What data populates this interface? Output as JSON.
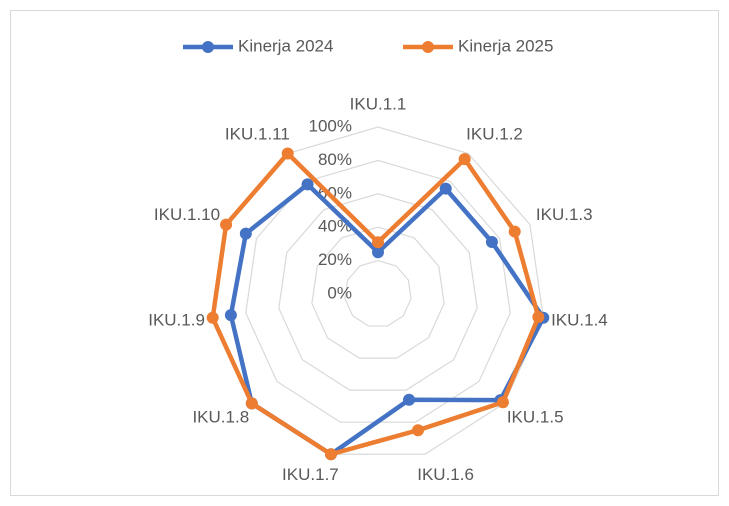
{
  "chart_data": {
    "type": "radar",
    "categories": [
      "IKU.1.1",
      "IKU.1.2",
      "IKU.1.3",
      "IKU.1.4",
      "IKU.1.5",
      "IKU.1.6",
      "IKU.1.7",
      "IKU.1.8",
      "IKU.1.9",
      "IKU.1.10",
      "IKU.1.11"
    ],
    "series": [
      {
        "name": "Kinerja 2024",
        "color": "#4472c4",
        "values": [
          25,
          75,
          75,
          100,
          97,
          66,
          100,
          100,
          89,
          87,
          78
        ]
      },
      {
        "name": "Kinerja 2025",
        "color": "#ed7d31",
        "values": [
          31,
          96,
          90,
          97,
          99,
          85,
          100,
          100,
          100,
          100,
          100
        ]
      }
    ],
    "ylim": [
      0,
      100
    ],
    "yticks": [
      {
        "value": 0,
        "label": "0%"
      },
      {
        "value": 20,
        "label": "20%"
      },
      {
        "value": 40,
        "label": "40%"
      },
      {
        "value": 60,
        "label": "60%"
      },
      {
        "value": 80,
        "label": "80%"
      },
      {
        "value": 100,
        "label": "100%"
      }
    ],
    "grid": true,
    "legend": "top"
  }
}
